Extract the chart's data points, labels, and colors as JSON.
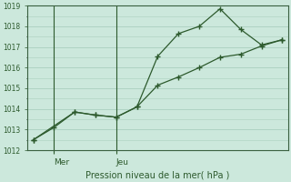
{
  "background_color": "#cce8dc",
  "grid_color": "#aacfbf",
  "line_color": "#2d5a2d",
  "title": "Pression niveau de la mer( hPa )",
  "xlabel_mer": "Mer",
  "xlabel_jeu": "Jeu",
  "ylim": [
    1012,
    1019
  ],
  "yticks": [
    1012,
    1013,
    1014,
    1015,
    1016,
    1017,
    1018,
    1019
  ],
  "series1_x": [
    0,
    1,
    2,
    3,
    4,
    5,
    6,
    7,
    8,
    9,
    10,
    11,
    12
  ],
  "series1_y": [
    1012.5,
    1013.1,
    1013.85,
    1013.7,
    1013.6,
    1014.1,
    1016.55,
    1017.65,
    1018.0,
    1018.85,
    1017.85,
    1017.1,
    1017.35
  ],
  "series2_x": [
    0,
    2,
    3,
    4,
    5,
    6,
    7,
    8,
    9,
    10,
    11,
    12
  ],
  "series2_y": [
    1012.5,
    1013.85,
    1013.7,
    1013.6,
    1014.1,
    1015.15,
    1015.55,
    1016.0,
    1016.5,
    1016.65,
    1017.05,
    1017.35
  ],
  "mer_x": 1.0,
  "jeu_x": 4.0,
  "xlim": [
    -0.3,
    12.3
  ],
  "figsize": [
    3.2,
    2.0
  ],
  "dpi": 100
}
